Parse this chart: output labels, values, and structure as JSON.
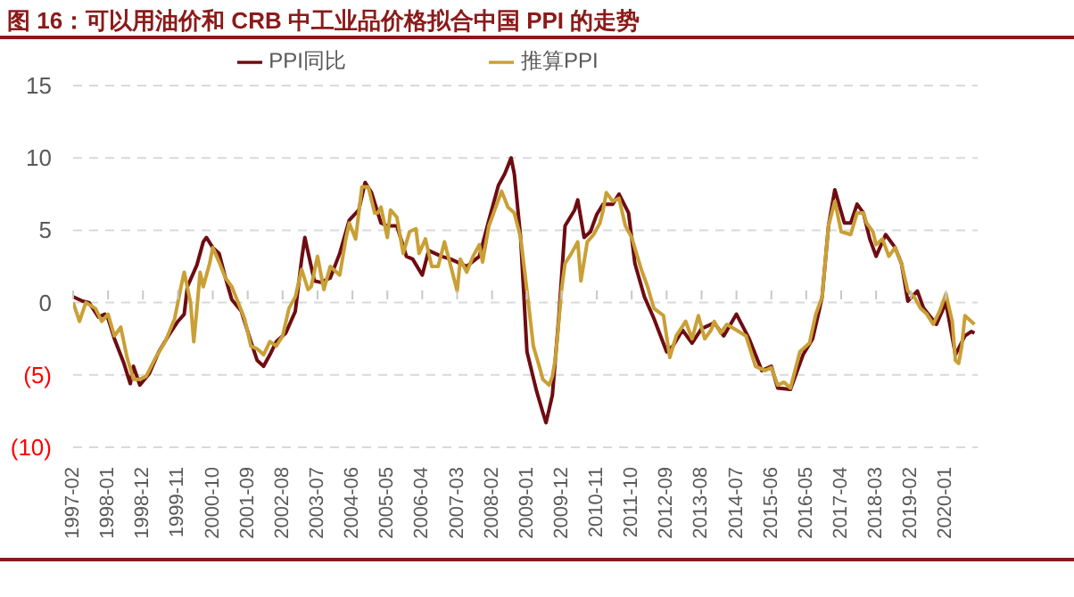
{
  "chart_data": {
    "type": "line",
    "title": "图 16：可以用油价和 CRB 中工业品价格拟合中国 PPI 的走势",
    "xlim": [
      "1997-02",
      "2020-11"
    ],
    "xticks": [
      "1997-02",
      "1998-01",
      "1998-12",
      "1999-11",
      "2000-10",
      "2001-09",
      "2002-08",
      "2003-07",
      "2004-06",
      "2005-05",
      "2006-04",
      "2007-03",
      "2008-02",
      "2009-01",
      "2009-12",
      "2010-11",
      "2011-10",
      "2012-09",
      "2013-08",
      "2014-07",
      "2015-06",
      "2016-05",
      "2017-04",
      "2018-03",
      "2019-02",
      "2020-01"
    ],
    "ylim": [
      -10,
      15
    ],
    "yticks": [
      {
        "value": -10,
        "label": "(10)"
      },
      {
        "value": -5,
        "label": "(5)"
      },
      0,
      5,
      10,
      15
    ],
    "grid": "y",
    "legend": "top",
    "marker": "none",
    "line_style": "solid",
    "series": [
      {
        "name": "PPI同比",
        "color": "#6e0c12",
        "x": [
          "1997-02",
          "1997-05",
          "1997-07",
          "1997-10",
          "1997-12",
          "1998-01",
          "1998-03",
          "1998-06",
          "1998-08",
          "1998-09",
          "1998-11",
          "1999-02",
          "1999-05",
          "1999-08",
          "1999-11",
          "2000-01",
          "2000-02",
          "2000-05",
          "2000-07",
          "2000-08",
          "2000-10",
          "2000-12",
          "2001-02",
          "2001-04",
          "2001-07",
          "2001-10",
          "2001-12",
          "2002-02",
          "2002-04",
          "2002-06",
          "2002-09",
          "2002-12",
          "2003-02",
          "2003-03",
          "2003-06",
          "2003-08",
          "2003-11",
          "2004-02",
          "2004-05",
          "2004-08",
          "2004-10",
          "2004-12",
          "2005-03",
          "2005-05",
          "2005-08",
          "2005-11",
          "2006-01",
          "2006-04",
          "2006-06",
          "2006-10",
          "2007-01",
          "2007-03",
          "2007-06",
          "2007-10",
          "2008-01",
          "2008-04",
          "2008-06",
          "2008-08",
          "2008-09",
          "2008-11",
          "2009-01",
          "2009-04",
          "2009-06",
          "2009-07",
          "2009-09",
          "2009-11",
          "2010-01",
          "2010-04",
          "2010-05",
          "2010-07",
          "2010-09",
          "2010-11",
          "2011-01",
          "2011-04",
          "2011-06",
          "2011-09",
          "2011-11",
          "2012-02",
          "2012-05",
          "2012-09",
          "2012-11",
          "2013-02",
          "2013-05",
          "2013-08",
          "2013-12",
          "2014-03",
          "2014-07",
          "2014-11",
          "2015-03",
          "2015-06",
          "2015-08",
          "2015-12",
          "2016-04",
          "2016-07",
          "2016-09",
          "2016-10",
          "2016-12",
          "2017-02",
          "2017-05",
          "2017-07",
          "2017-09",
          "2017-11",
          "2018-01",
          "2018-03",
          "2018-06",
          "2018-09",
          "2018-11",
          "2019-01",
          "2019-04",
          "2019-06",
          "2019-10",
          "2020-01",
          "2020-04",
          "2020-07",
          "2020-09",
          "2020-10"
        ],
        "values": [
          0.4,
          0.1,
          0,
          -1.0,
          -0.8,
          -1.1,
          -2.5,
          -4.2,
          -5.6,
          -4.4,
          -5.7,
          -4.9,
          -3.4,
          -2.3,
          -1.3,
          -0.8,
          1.1,
          2.6,
          4.2,
          4.5,
          3.8,
          3.4,
          1.7,
          0.2,
          -0.6,
          -2.7,
          -4.0,
          -4.4,
          -3.6,
          -2.7,
          -2.1,
          -0.6,
          3.0,
          4.5,
          1.5,
          1.4,
          1.7,
          3.4,
          5.7,
          6.4,
          8.3,
          7.6,
          5.5,
          5.3,
          5.3,
          3.2,
          3.0,
          1.9,
          3.6,
          3.2,
          3.0,
          2.8,
          2.5,
          3.2,
          5.7,
          8.1,
          8.9,
          10.0,
          8.9,
          4.5,
          -3.4,
          -6.1,
          -7.6,
          -8.3,
          -6.4,
          -1.1,
          5.3,
          6.4,
          7.1,
          4.5,
          4.9,
          6.1,
          6.8,
          6.8,
          7.5,
          6.2,
          2.7,
          0.4,
          -1.1,
          -3.4,
          -3.0,
          -1.9,
          -2.8,
          -1.8,
          -1.4,
          -2.3,
          -0.8,
          -2.5,
          -4.7,
          -4.4,
          -5.9,
          -6.0,
          -3.6,
          -2.5,
          -0.6,
          0.4,
          5.3,
          7.8,
          5.5,
          5.5,
          6.8,
          6.2,
          4.4,
          3.2,
          4.7,
          3.8,
          2.7,
          0.1,
          0.8,
          -0.4,
          -1.5,
          0,
          -3.6,
          -2.3,
          -2.0,
          -2.1
        ]
      },
      {
        "name": "推算PPI",
        "color": "#c9a036",
        "x": [
          "1997-02",
          "1997-04",
          "1997-06",
          "1997-09",
          "1997-11",
          "1998-01",
          "1998-03",
          "1998-05",
          "1998-07",
          "1998-09",
          "1998-11",
          "1999-01",
          "1999-04",
          "1999-07",
          "1999-10",
          "1999-12",
          "2000-01",
          "2000-03",
          "2000-04",
          "2000-05",
          "2000-06",
          "2000-07",
          "2000-09",
          "2000-10",
          "2000-12",
          "2001-02",
          "2001-04",
          "2001-06",
          "2001-08",
          "2001-10",
          "2001-12",
          "2002-02",
          "2002-04",
          "2002-06",
          "2002-08",
          "2002-10",
          "2002-12",
          "2003-02",
          "2003-04",
          "2003-05",
          "2003-07",
          "2003-09",
          "2003-11",
          "2003-12",
          "2004-02",
          "2004-04",
          "2004-05",
          "2004-07",
          "2004-09",
          "2004-11",
          "2005-01",
          "2005-02",
          "2005-03",
          "2005-05",
          "2005-06",
          "2005-08",
          "2005-10",
          "2005-12",
          "2006-02",
          "2006-03",
          "2006-05",
          "2006-07",
          "2006-09",
          "2006-11",
          "2007-01",
          "2007-03",
          "2007-04",
          "2007-06",
          "2007-08",
          "2007-10",
          "2007-11",
          "2008-01",
          "2008-03",
          "2008-05",
          "2008-07",
          "2008-09",
          "2008-11",
          "2009-01",
          "2009-03",
          "2009-05",
          "2009-06",
          "2009-08",
          "2009-09",
          "2009-10",
          "2009-12",
          "2010-01",
          "2010-03",
          "2010-05",
          "2010-06",
          "2010-08",
          "2010-10",
          "2010-12",
          "2011-01",
          "2011-02",
          "2011-04",
          "2011-06",
          "2011-08",
          "2011-10",
          "2012-01",
          "2012-03",
          "2012-05",
          "2012-08",
          "2012-10",
          "2012-12",
          "2013-03",
          "2013-05",
          "2013-07",
          "2013-09",
          "2013-11",
          "2013-12",
          "2014-02",
          "2014-04",
          "2014-07",
          "2014-10",
          "2015-01",
          "2015-04",
          "2015-06",
          "2015-08",
          "2015-10",
          "2015-12",
          "2016-03",
          "2016-06",
          "2016-08",
          "2016-10",
          "2016-12",
          "2017-02",
          "2017-04",
          "2017-07",
          "2017-09",
          "2017-11",
          "2017-12",
          "2018-02",
          "2018-03",
          "2018-05",
          "2018-07",
          "2018-09",
          "2018-11",
          "2019-01",
          "2019-03",
          "2019-05",
          "2019-07",
          "2019-09",
          "2019-11",
          "2020-01",
          "2020-03",
          "2020-04",
          "2020-05",
          "2020-06",
          "2020-07",
          "2020-09",
          "2020-10"
        ],
        "values": [
          0,
          -1.3,
          0,
          -0.4,
          -1.3,
          -0.8,
          -2.3,
          -1.7,
          -3.8,
          -5.3,
          -5.3,
          -5.1,
          -3.8,
          -2.7,
          -1.1,
          1.1,
          2.1,
          0,
          -2.7,
          -0.4,
          2.1,
          1.1,
          2.7,
          3.8,
          2.8,
          1.7,
          1.1,
          0,
          -1.1,
          -3.0,
          -3.2,
          -3.6,
          -2.7,
          -3.0,
          -2.3,
          -0.4,
          0.4,
          2.3,
          0.9,
          1.1,
          3.2,
          0.9,
          2.5,
          2.3,
          1.9,
          4.5,
          5.5,
          4.4,
          8.0,
          8.0,
          6.2,
          6.2,
          6.6,
          4.5,
          6.4,
          5.9,
          3.4,
          4.9,
          5.1,
          3.4,
          4.4,
          2.5,
          2.5,
          4.2,
          2.5,
          0.8,
          3.0,
          2.1,
          3.2,
          4.0,
          2.8,
          5.3,
          6.5,
          7.7,
          6.6,
          6.2,
          4.5,
          0.8,
          -3.0,
          -4.5,
          -5.3,
          -5.7,
          -5.1,
          -3.8,
          1.1,
          2.7,
          3.4,
          4.2,
          1.5,
          4.2,
          4.7,
          5.5,
          6.4,
          7.6,
          7.0,
          7.2,
          5.3,
          4.5,
          2.3,
          1.1,
          -0.4,
          -0.9,
          -3.8,
          -2.3,
          -1.3,
          -2.5,
          -0.9,
          -2.5,
          -1.9,
          -1.3,
          -2.1,
          -1.5,
          -1.9,
          -2.3,
          -4.4,
          -4.7,
          -4.5,
          -5.7,
          -5.5,
          -5.9,
          -3.4,
          -2.8,
          -0.8,
          0.4,
          5.3,
          7.0,
          4.9,
          4.7,
          6.2,
          6.2,
          5.5,
          4.9,
          4.0,
          4.4,
          3.2,
          3.8,
          2.7,
          0.8,
          0.4,
          -0.4,
          -0.8,
          -1.5,
          -0.6,
          0.6,
          -1.3,
          -4.0,
          -4.2,
          -3.0,
          -0.9,
          -1.3,
          -1.5
        ]
      }
    ]
  }
}
